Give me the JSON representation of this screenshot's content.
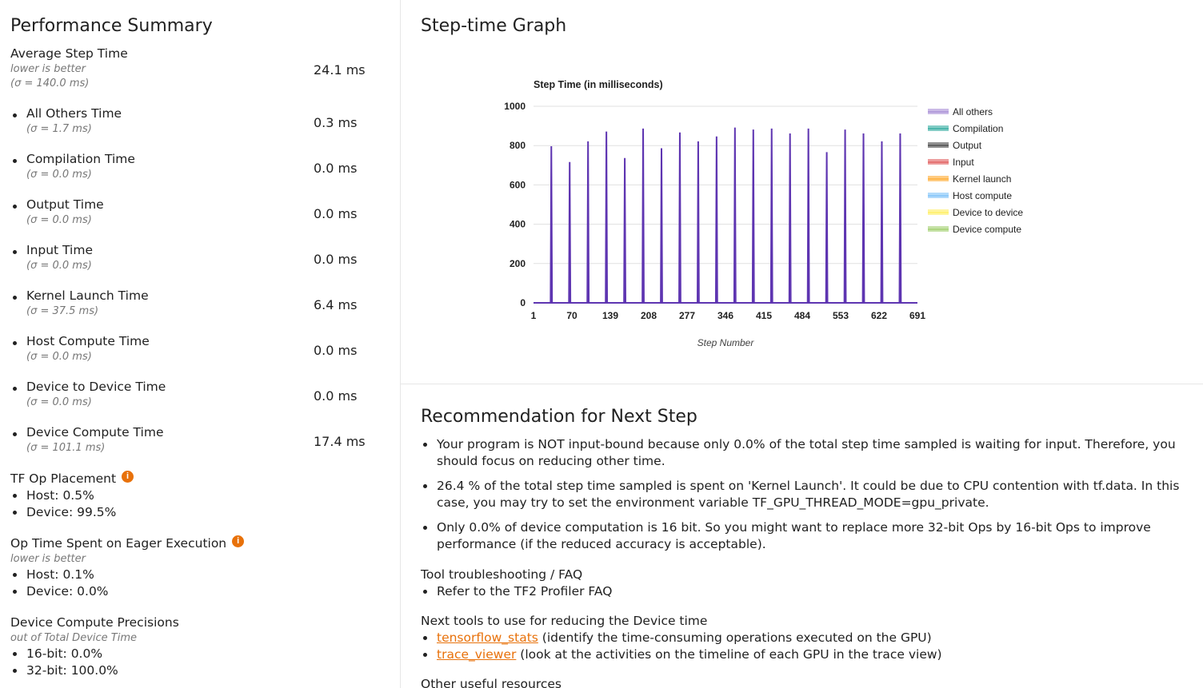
{
  "summary": {
    "title": "Performance Summary",
    "average": {
      "name": "Average Step Time",
      "note": "lower is better",
      "sigma": "(σ = 140.0 ms)",
      "value": "24.1 ms"
    },
    "metrics": [
      {
        "name": "All Others Time",
        "sigma": "(σ = 1.7 ms)",
        "value": "0.3 ms"
      },
      {
        "name": "Compilation Time",
        "sigma": "(σ = 0.0 ms)",
        "value": "0.0 ms"
      },
      {
        "name": "Output Time",
        "sigma": "(σ = 0.0 ms)",
        "value": "0.0 ms"
      },
      {
        "name": "Input Time",
        "sigma": "(σ = 0.0 ms)",
        "value": "0.0 ms"
      },
      {
        "name": "Kernel Launch Time",
        "sigma": "(σ = 37.5 ms)",
        "value": "6.4 ms"
      },
      {
        "name": "Host Compute Time",
        "sigma": "(σ = 0.0 ms)",
        "value": "0.0 ms"
      },
      {
        "name": "Device to Device Time",
        "sigma": "(σ = 0.0 ms)",
        "value": "0.0 ms"
      },
      {
        "name": "Device Compute Time",
        "sigma": "(σ = 101.1 ms)",
        "value": "17.4 ms"
      }
    ],
    "placement": {
      "title": "TF Op Placement",
      "host": "Host: 0.5%",
      "device": "Device: 99.5%"
    },
    "eager": {
      "title": "Op Time Spent on Eager Execution",
      "note": "lower is better",
      "host": "Host: 0.1%",
      "device": "Device: 0.0%"
    },
    "precision": {
      "title": "Device Compute Precisions",
      "note": "out of Total Device Time",
      "b16": "16-bit: 0.0%",
      "b32": "32-bit: 100.0%"
    },
    "info_icon": "i"
  },
  "graph": {
    "title": "Step-time Graph"
  },
  "chart_data": {
    "type": "area",
    "title": "Step Time (in milliseconds)",
    "xlabel": "Step Number",
    "ylabel": "",
    "xlim": [
      1,
      691
    ],
    "ylim": [
      0,
      1000
    ],
    "y_ticks": [
      "0",
      "200",
      "400",
      "600",
      "800",
      "1000"
    ],
    "x_ticks": [
      "1",
      "70",
      "139",
      "208",
      "277",
      "346",
      "415",
      "484",
      "553",
      "622",
      "691"
    ],
    "legend_position": "right",
    "legend": [
      {
        "name": "All others",
        "color": "#b39ddb"
      },
      {
        "name": "Compilation",
        "color": "#4db6ac"
      },
      {
        "name": "Output",
        "color": "#616161"
      },
      {
        "name": "Input",
        "color": "#e57373"
      },
      {
        "name": "Kernel launch",
        "color": "#ffb74d"
      },
      {
        "name": "Host compute",
        "color": "#90caf9"
      },
      {
        "name": "Device to device",
        "color": "#fff176"
      },
      {
        "name": "Device compute",
        "color": "#aed581"
      }
    ],
    "series_color": "#5e35b1",
    "spikes": [
      {
        "step": 33,
        "value": 795
      },
      {
        "step": 66,
        "value": 715
      },
      {
        "step": 99,
        "value": 820
      },
      {
        "step": 132,
        "value": 870
      },
      {
        "step": 165,
        "value": 735
      },
      {
        "step": 198,
        "value": 885
      },
      {
        "step": 231,
        "value": 785
      },
      {
        "step": 264,
        "value": 865
      },
      {
        "step": 297,
        "value": 820
      },
      {
        "step": 330,
        "value": 845
      },
      {
        "step": 363,
        "value": 890
      },
      {
        "step": 396,
        "value": 880
      },
      {
        "step": 429,
        "value": 885
      },
      {
        "step": 462,
        "value": 860
      },
      {
        "step": 495,
        "value": 885
      },
      {
        "step": 528,
        "value": 765
      },
      {
        "step": 561,
        "value": 880
      },
      {
        "step": 594,
        "value": 860
      },
      {
        "step": 627,
        "value": 820
      },
      {
        "step": 660,
        "value": 860
      }
    ]
  },
  "recommendation": {
    "title": "Recommendation for Next Step",
    "items": [
      "Your program is NOT input-bound because only 0.0% of the total step time sampled is waiting for input. Therefore, you should focus on reducing other time.",
      "26.4 % of the total step time sampled is spent on 'Kernel Launch'. It could be due to CPU contention with tf.data. In this case, you may try to set the environment variable TF_GPU_THREAD_MODE=gpu_private.",
      "Only 0.0% of device computation is 16 bit. So you might want to replace more 32-bit Ops by 16-bit Ops to improve performance (if the reduced accuracy is acceptable)."
    ],
    "faq_title": "Tool troubleshooting / FAQ",
    "faq_item": "Refer to the TF2 Profiler FAQ",
    "next_title": "Next tools to use for reducing the Device time",
    "tool1_link": "tensorflow_stats",
    "tool1_desc": " (identify the time-consuming operations executed on the GPU)",
    "tool2_link": "trace_viewer",
    "tool2_desc": " (look at the activities on the timeline of each GPU in the trace view)",
    "other_title": "Other useful resources"
  }
}
